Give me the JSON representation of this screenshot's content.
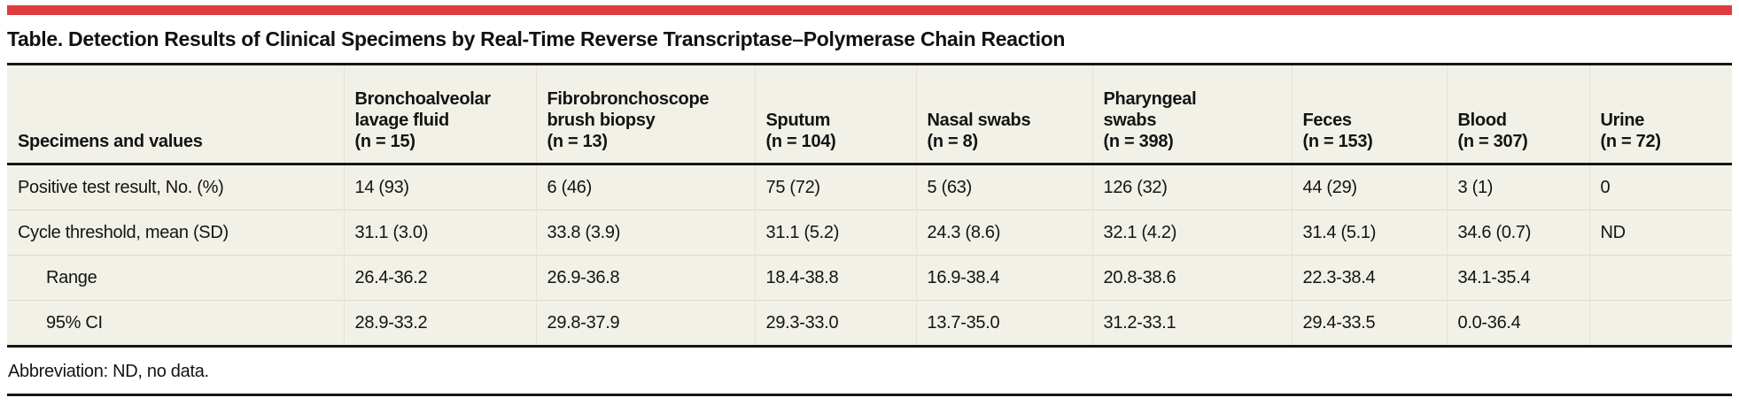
{
  "colors": {
    "accent_red": "#DE3B3E",
    "table_background": "#F2F1E8",
    "rule_black": "#161616",
    "row_divider": "#DBDACC",
    "column_divider": "#E4E3D6"
  },
  "title": "Table. Detection Results of Clinical Specimens by Real-Time Reverse Transcriptase–Polymerase Chain Reaction",
  "footnote": "Abbreviation: ND, no data.",
  "table": {
    "columns": [
      {
        "label": "Specimens and values"
      },
      {
        "label": "Bronchoalveolar\nlavage fluid\n(n = 15)"
      },
      {
        "label": "Fibrobronchoscope\nbrush biopsy\n(n = 13)"
      },
      {
        "label": "Sputum\n(n = 104)"
      },
      {
        "label": "Nasal swabs\n(n = 8)"
      },
      {
        "label": "Pharyngeal\nswabs\n(n = 398)"
      },
      {
        "label": "Feces\n(n = 153)"
      },
      {
        "label": "Blood\n(n = 307)"
      },
      {
        "label": "Urine\n(n = 72)"
      }
    ],
    "rows": [
      {
        "label": "Positive test result, No. (%)",
        "indent": false,
        "values": [
          "14 (93)",
          "6 (46)",
          "75 (72)",
          "5 (63)",
          "126 (32)",
          "44 (29)",
          "3 (1)",
          "0"
        ]
      },
      {
        "label": "Cycle threshold, mean (SD)",
        "indent": false,
        "values": [
          "31.1 (3.0)",
          "33.8 (3.9)",
          "31.1 (5.2)",
          "24.3 (8.6)",
          "32.1 (4.2)",
          "31.4 (5.1)",
          "34.6 (0.7)",
          "ND"
        ]
      },
      {
        "label": "Range",
        "indent": true,
        "values": [
          "26.4-36.2",
          "26.9-36.8",
          "18.4-38.8",
          "16.9-38.4",
          "20.8-38.6",
          "22.3-38.4",
          "34.1-35.4",
          ""
        ]
      },
      {
        "label": "95% CI",
        "indent": true,
        "values": [
          "28.9-33.2",
          "29.8-37.9",
          "29.3-33.0",
          "13.7-35.0",
          "31.2-33.1",
          "29.4-33.5",
          "0.0-36.4",
          ""
        ]
      }
    ]
  }
}
